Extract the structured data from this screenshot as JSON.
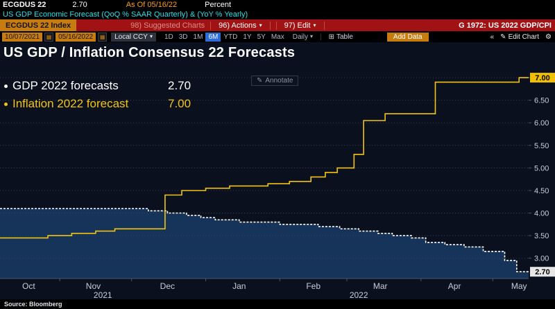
{
  "icons": {
    "dropdown": "▾",
    "calendar": "▦",
    "table": "⊞",
    "collapse": "«",
    "pencil": "✎",
    "gear": "⚙"
  },
  "top_bar": {
    "ticker": "ECGDUS 22",
    "last_value": "2.70",
    "as_of": "As Of 05/16/22",
    "unit": "Percent",
    "description": "US GDP Economic Forecast (QoQ % SAAR Quarterly) & (YoY % Yearly)"
  },
  "menu_bar": {
    "security": "ECGDUS 22 Index",
    "suggested_charts": "98) Suggested Charts",
    "actions": "96) Actions",
    "edit": "97) Edit",
    "screen_label": "G 1972: US 2022 GDP/CPI"
  },
  "toolbar": {
    "date_from": "10/07/2021",
    "date_to": "05/16/2022",
    "currency": "Local CCY",
    "ranges": [
      "1D",
      "3D",
      "1M",
      "6M",
      "YTD",
      "1Y",
      "5Y",
      "Max"
    ],
    "active_range": "6M",
    "frequency": "Daily",
    "table": "Table",
    "add_data": "Add Data",
    "edit_chart": "Edit Chart"
  },
  "chart": {
    "title": "US GDP / Inflation Consensus 22 Forecasts",
    "annotate": "Annotate",
    "legend": [
      {
        "label": "GDP 2022 forecasts",
        "value": "2.70"
      },
      {
        "label": "Inflation 2022 forecast",
        "value": "7.00"
      }
    ],
    "source": "Source: Bloomberg"
  },
  "chart_data": {
    "type": "line",
    "title": "US GDP / Inflation Consensus 22 Forecasts",
    "x_unit": "days since 2021-10-07",
    "x_range": [
      0,
      221
    ],
    "ylim": [
      2.55,
      7.17
    ],
    "ylabel": "Percent",
    "grid": true,
    "legend_position": "top-left",
    "y_ticks": [
      3.0,
      3.5,
      4.0,
      4.5,
      5.0,
      5.5,
      6.0,
      6.5,
      7.0
    ],
    "series": [
      {
        "name": "GDP 2022 forecasts",
        "color": "#ffffff",
        "dash": "3 2",
        "fill": "#16335a",
        "last_value": 2.7,
        "points": [
          [
            0,
            4.1
          ],
          [
            62,
            4.05
          ],
          [
            70,
            4.0
          ],
          [
            78,
            3.95
          ],
          [
            84,
            3.9
          ],
          [
            90,
            3.85
          ],
          [
            100,
            3.8
          ],
          [
            117,
            3.75
          ],
          [
            133,
            3.7
          ],
          [
            142,
            3.65
          ],
          [
            150,
            3.6
          ],
          [
            158,
            3.55
          ],
          [
            164,
            3.5
          ],
          [
            172,
            3.45
          ],
          [
            178,
            3.35
          ],
          [
            186,
            3.3
          ],
          [
            194,
            3.25
          ],
          [
            202,
            3.15
          ],
          [
            211,
            2.95
          ],
          [
            216,
            2.7
          ]
        ]
      },
      {
        "name": "Inflation 2022 forecast",
        "color": "#f5c40f",
        "last_value": 7.0,
        "points": [
          [
            0,
            3.45
          ],
          [
            20,
            3.5
          ],
          [
            30,
            3.55
          ],
          [
            40,
            3.6
          ],
          [
            48,
            3.65
          ],
          [
            69,
            4.4
          ],
          [
            76,
            4.5
          ],
          [
            86,
            4.55
          ],
          [
            96,
            4.6
          ],
          [
            112,
            4.65
          ],
          [
            121,
            4.7
          ],
          [
            130,
            4.8
          ],
          [
            136,
            4.9
          ],
          [
            141,
            5.0
          ],
          [
            148,
            5.3
          ],
          [
            152,
            6.05
          ],
          [
            161,
            6.2
          ],
          [
            182,
            6.9
          ],
          [
            217,
            7.0
          ]
        ]
      }
    ],
    "x_ticks": [
      {
        "label": "Oct",
        "day": 12
      },
      {
        "label": "Nov",
        "day": 39
      },
      {
        "label": "Dec",
        "day": 70
      },
      {
        "label": "Jan",
        "day": 100
      },
      {
        "label": "Feb",
        "day": 131
      },
      {
        "label": "Mar",
        "day": 159
      },
      {
        "label": "Apr",
        "day": 190
      },
      {
        "label": "May",
        "day": 217
      }
    ],
    "x_tick_marks": [
      25,
      55,
      86,
      117,
      145,
      176,
      206
    ],
    "year_labels": [
      {
        "label": "2021",
        "day": 43
      },
      {
        "label": "2022",
        "day": 150
      }
    ],
    "axis_value_boxes": [
      {
        "value": 7.0,
        "bg": "#f0c000",
        "fg": "#000000"
      },
      {
        "value": 2.7,
        "bg": "#e6e6e6",
        "fg": "#000000"
      }
    ]
  }
}
